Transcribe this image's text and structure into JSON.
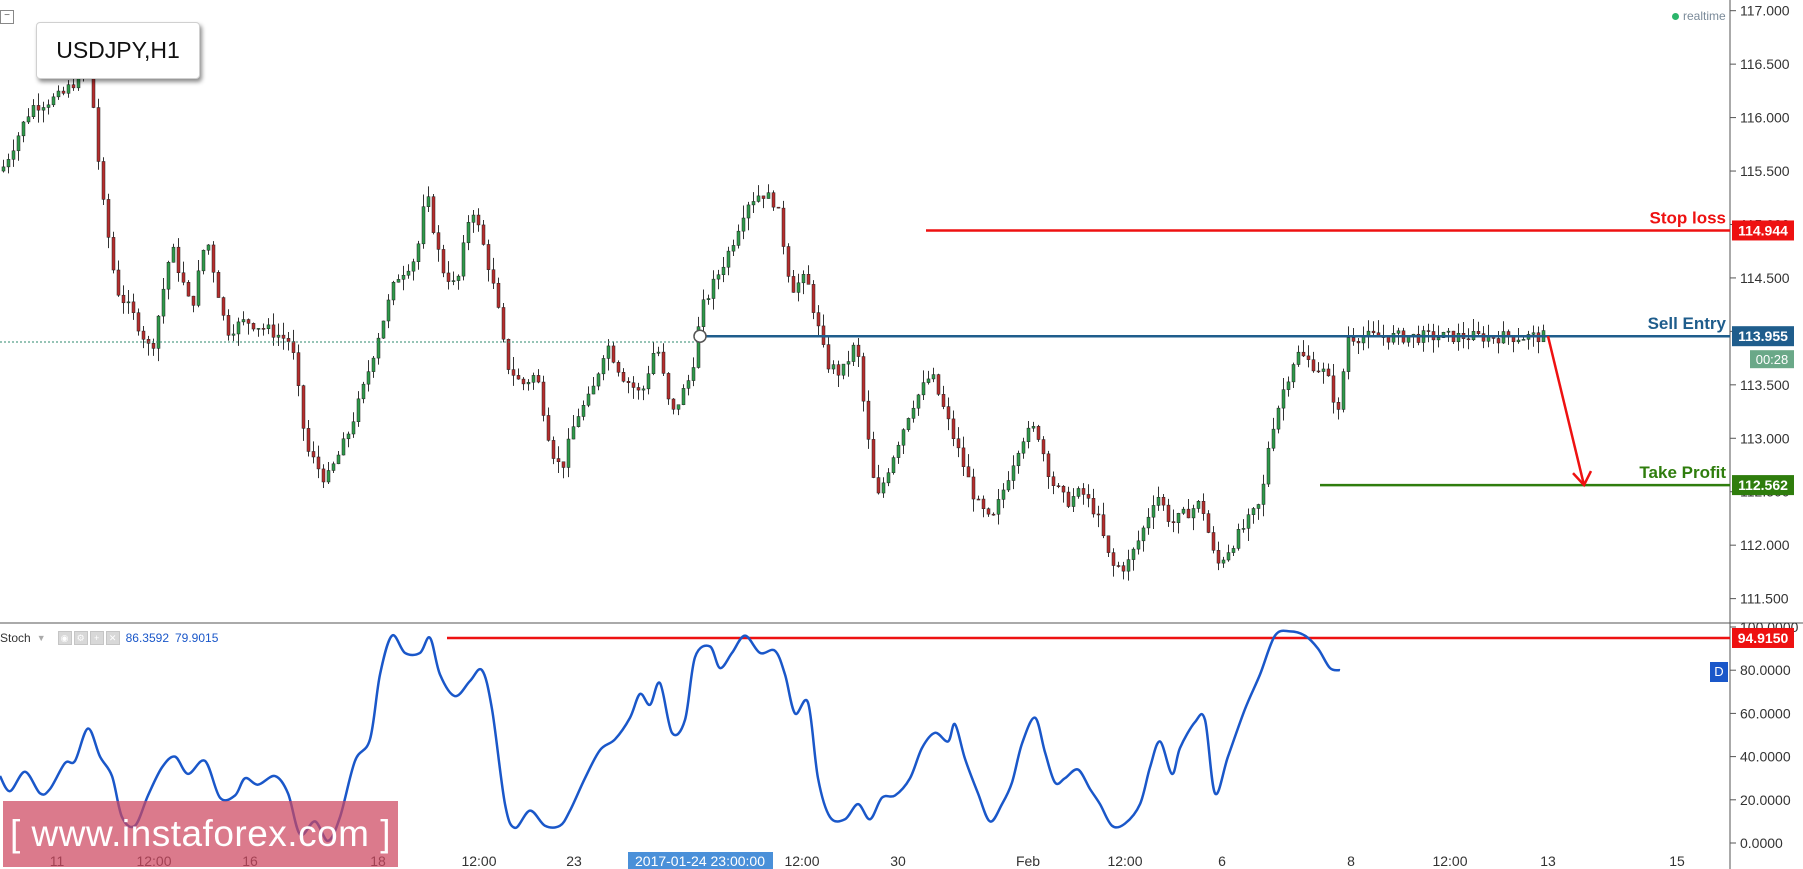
{
  "symbol": "USDJPY,H1",
  "realtime_label": "realtime",
  "price_axis": {
    "ticks": [
      "117.000",
      "116.500",
      "116.000",
      "115.500",
      "115.000",
      "114.500",
      "114.000",
      "113.500",
      "113.000",
      "112.500",
      "112.000",
      "111.500"
    ],
    "ticks_values": [
      117.0,
      116.5,
      116.0,
      115.5,
      115.0,
      114.5,
      114.0,
      113.5,
      113.0,
      112.5,
      112.0,
      111.5
    ]
  },
  "levels": {
    "stop_loss": {
      "label": "Stop loss",
      "value": "114.944",
      "color": "#ee1111"
    },
    "sell_entry": {
      "label": "Sell Entry",
      "value": "113.955",
      "color": "#1f5d8c"
    },
    "take_profit": {
      "label": "Take Profit",
      "value": "112.562",
      "color": "#2f7d0d"
    }
  },
  "countdown": "00:28",
  "time_axis": {
    "labels": [
      "11",
      "12:00",
      "16",
      "18",
      "12:00",
      "23",
      "2017-01-24 23:00:00",
      "12:00",
      "30",
      "Feb",
      "12:00",
      "6",
      "8",
      "12:00",
      "13",
      "15"
    ],
    "highlighted": "2017-01-24 23:00:00"
  },
  "stoch": {
    "name": "Stoch",
    "value_k": "86.3592",
    "value_d": "79.9015",
    "ticks": [
      "100.0000",
      "80.0000",
      "60.0000",
      "40.0000",
      "20.0000",
      "0.0000"
    ],
    "ticks_values": [
      100,
      80,
      60,
      40,
      20,
      0
    ],
    "level_value": "94.9150",
    "d_badge": "D"
  },
  "watermark": "[ www.instaforex.com ]",
  "chart_data": {
    "type": "candlestick",
    "title": "USDJPY,H1",
    "ylim": [
      111.3,
      117.1
    ],
    "stoch_ylim": [
      0,
      100
    ],
    "price_path": [
      [
        0,
        115.5
      ],
      [
        30,
        116.1
      ],
      [
        60,
        116.2
      ],
      [
        88,
        116.5
      ],
      [
        100,
        115.3
      ],
      [
        115,
        114.4
      ],
      [
        135,
        114.1
      ],
      [
        150,
        113.8
      ],
      [
        170,
        114.8
      ],
      [
        190,
        114.2
      ],
      [
        205,
        114.9
      ],
      [
        225,
        114.0
      ],
      [
        245,
        114.1
      ],
      [
        270,
        114.0
      ],
      [
        290,
        113.9
      ],
      [
        305,
        112.9
      ],
      [
        325,
        112.6
      ],
      [
        345,
        113.0
      ],
      [
        360,
        113.4
      ],
      [
        378,
        114.0
      ],
      [
        395,
        114.5
      ],
      [
        415,
        114.7
      ],
      [
        425,
        115.3
      ],
      [
        440,
        114.6
      ],
      [
        455,
        114.4
      ],
      [
        470,
        115.2
      ],
      [
        485,
        114.7
      ],
      [
        495,
        114.3
      ],
      [
        505,
        113.7
      ],
      [
        520,
        113.5
      ],
      [
        535,
        113.6
      ],
      [
        550,
        112.9
      ],
      [
        560,
        112.7
      ],
      [
        575,
        113.2
      ],
      [
        590,
        113.4
      ],
      [
        605,
        113.9
      ],
      [
        620,
        113.6
      ],
      [
        640,
        113.4
      ],
      [
        655,
        113.9
      ],
      [
        670,
        113.2
      ],
      [
        690,
        113.6
      ],
      [
        700,
        114.2
      ],
      [
        715,
        114.5
      ],
      [
        730,
        114.8
      ],
      [
        745,
        115.2
      ],
      [
        760,
        115.3
      ],
      [
        775,
        115.2
      ],
      [
        790,
        114.4
      ],
      [
        805,
        114.5
      ],
      [
        815,
        114.1
      ],
      [
        825,
        113.7
      ],
      [
        840,
        113.6
      ],
      [
        855,
        113.9
      ],
      [
        865,
        113.1
      ],
      [
        875,
        112.4
      ],
      [
        890,
        112.8
      ],
      [
        910,
        113.3
      ],
      [
        930,
        113.6
      ],
      [
        945,
        113.2
      ],
      [
        960,
        112.8
      ],
      [
        975,
        112.4
      ],
      [
        990,
        112.2
      ],
      [
        1005,
        112.6
      ],
      [
        1020,
        113.0
      ],
      [
        1035,
        113.1
      ],
      [
        1050,
        112.6
      ],
      [
        1065,
        112.4
      ],
      [
        1080,
        112.5
      ],
      [
        1095,
        112.3
      ],
      [
        1110,
        111.8
      ],
      [
        1125,
        111.8
      ],
      [
        1140,
        112.1
      ],
      [
        1155,
        112.5
      ],
      [
        1170,
        112.2
      ],
      [
        1185,
        112.3
      ],
      [
        1200,
        112.4
      ],
      [
        1215,
        111.8
      ],
      [
        1230,
        112.0
      ],
      [
        1245,
        112.2
      ],
      [
        1260,
        112.4
      ],
      [
        1268,
        113.0
      ],
      [
        1280,
        113.4
      ],
      [
        1295,
        113.8
      ],
      [
        1310,
        113.7
      ],
      [
        1325,
        113.6
      ],
      [
        1338,
        113.2
      ],
      [
        1345,
        113.95
      ]
    ],
    "stoch_k_path": [
      [
        0,
        31
      ],
      [
        10,
        24
      ],
      [
        25,
        33
      ],
      [
        40,
        23
      ],
      [
        50,
        25
      ],
      [
        65,
        37
      ],
      [
        75,
        38
      ],
      [
        88,
        53
      ],
      [
        100,
        40
      ],
      [
        112,
        31
      ],
      [
        122,
        12
      ],
      [
        135,
        8
      ],
      [
        148,
        22
      ],
      [
        162,
        35
      ],
      [
        175,
        40
      ],
      [
        188,
        32
      ],
      [
        205,
        38
      ],
      [
        220,
        21
      ],
      [
        235,
        22
      ],
      [
        245,
        30
      ],
      [
        258,
        27
      ],
      [
        275,
        31
      ],
      [
        288,
        23
      ],
      [
        300,
        4
      ],
      [
        315,
        10
      ],
      [
        328,
        1
      ],
      [
        340,
        12
      ],
      [
        355,
        38
      ],
      [
        370,
        48
      ],
      [
        380,
        78
      ],
      [
        392,
        96
      ],
      [
        405,
        88
      ],
      [
        420,
        88
      ],
      [
        430,
        95
      ],
      [
        440,
        78
      ],
      [
        455,
        68
      ],
      [
        470,
        75
      ],
      [
        482,
        80
      ],
      [
        492,
        62
      ],
      [
        505,
        18
      ],
      [
        515,
        7
      ],
      [
        530,
        15
      ],
      [
        545,
        8
      ],
      [
        560,
        8
      ],
      [
        570,
        15
      ],
      [
        585,
        30
      ],
      [
        600,
        43
      ],
      [
        615,
        48
      ],
      [
        630,
        58
      ],
      [
        640,
        69
      ],
      [
        650,
        64
      ],
      [
        660,
        74
      ],
      [
        672,
        51
      ],
      [
        685,
        57
      ],
      [
        695,
        86
      ],
      [
        710,
        91
      ],
      [
        720,
        81
      ],
      [
        732,
        88
      ],
      [
        745,
        96
      ],
      [
        760,
        88
      ],
      [
        775,
        89
      ],
      [
        785,
        78
      ],
      [
        795,
        60
      ],
      [
        808,
        65
      ],
      [
        818,
        30
      ],
      [
        830,
        12
      ],
      [
        845,
        11
      ],
      [
        858,
        18
      ],
      [
        870,
        11
      ],
      [
        882,
        21
      ],
      [
        895,
        22
      ],
      [
        910,
        30
      ],
      [
        922,
        44
      ],
      [
        935,
        51
      ],
      [
        948,
        47
      ],
      [
        955,
        55
      ],
      [
        965,
        39
      ],
      [
        978,
        23
      ],
      [
        990,
        10
      ],
      [
        1002,
        18
      ],
      [
        1012,
        28
      ],
      [
        1022,
        46
      ],
      [
        1035,
        58
      ],
      [
        1045,
        42
      ],
      [
        1055,
        28
      ],
      [
        1065,
        30
      ],
      [
        1078,
        34
      ],
      [
        1090,
        25
      ],
      [
        1100,
        18
      ],
      [
        1112,
        8
      ],
      [
        1125,
        9
      ],
      [
        1140,
        18
      ],
      [
        1150,
        35
      ],
      [
        1160,
        47
      ],
      [
        1172,
        32
      ],
      [
        1180,
        44
      ],
      [
        1195,
        56
      ],
      [
        1205,
        57
      ],
      [
        1215,
        23
      ],
      [
        1228,
        40
      ],
      [
        1245,
        62
      ],
      [
        1260,
        78
      ],
      [
        1275,
        96
      ],
      [
        1290,
        98
      ],
      [
        1305,
        96
      ],
      [
        1318,
        90
      ],
      [
        1330,
        81
      ],
      [
        1340,
        80
      ]
    ]
  }
}
